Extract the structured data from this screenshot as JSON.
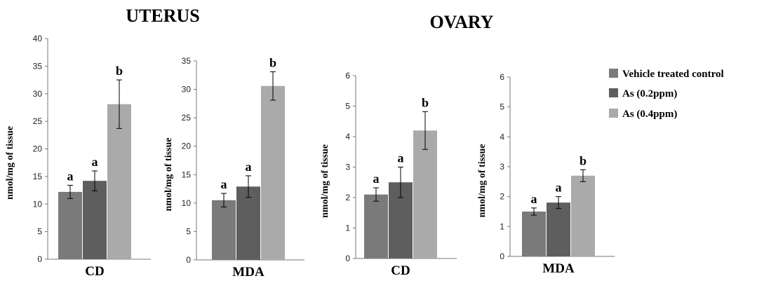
{
  "group_titles": [
    "UTERUS",
    "OVARY"
  ],
  "legend": [
    {
      "label": "Vehicle treated control",
      "color": "#7a7a7a"
    },
    {
      "label": "As (0.2ppm)",
      "color": "#5e5e5e"
    },
    {
      "label": "As (0.4ppm)",
      "color": "#aaaaaa"
    }
  ],
  "chart_data": [
    {
      "type": "bar",
      "group": "UTERUS",
      "categories": [
        "CD"
      ],
      "ylabel": "nmol/mg of tissue",
      "ylim": [
        0,
        40
      ],
      "yticks": [
        0,
        5,
        10,
        15,
        20,
        25,
        30,
        35,
        40
      ],
      "series": [
        {
          "name": "Vehicle treated control",
          "values": [
            12.2
          ],
          "error": [
            1.2
          ],
          "sig": [
            "a"
          ]
        },
        {
          "name": "As (0.2ppm)",
          "values": [
            14.2
          ],
          "error": [
            1.8
          ],
          "sig": [
            "a"
          ]
        },
        {
          "name": "As (0.4ppm)",
          "values": [
            28.1
          ],
          "error": [
            4.4
          ],
          "sig": [
            "b"
          ]
        }
      ]
    },
    {
      "type": "bar",
      "group": "UTERUS",
      "categories": [
        "MDA"
      ],
      "ylabel": "nmol/mg of tissue",
      "ylim": [
        0,
        35
      ],
      "yticks": [
        0,
        5,
        10,
        15,
        20,
        25,
        30,
        35
      ],
      "series": [
        {
          "name": "Vehicle treated control",
          "values": [
            10.5
          ],
          "error": [
            1.2
          ],
          "sig": [
            "a"
          ]
        },
        {
          "name": "As (0.2ppm)",
          "values": [
            12.9
          ],
          "error": [
            1.9
          ],
          "sig": [
            "a"
          ]
        },
        {
          "name": "As (0.4ppm)",
          "values": [
            30.6
          ],
          "error": [
            2.5
          ],
          "sig": [
            "b"
          ]
        }
      ]
    },
    {
      "type": "bar",
      "group": "OVARY",
      "categories": [
        "CD"
      ],
      "ylabel": "nmol/mg of tissue",
      "ylim": [
        0,
        6
      ],
      "yticks": [
        0,
        1,
        2,
        3,
        4,
        5,
        6
      ],
      "series": [
        {
          "name": "Vehicle treated control",
          "values": [
            2.1
          ],
          "error": [
            0.22
          ],
          "sig": [
            "a"
          ]
        },
        {
          "name": "As (0.2ppm)",
          "values": [
            2.5
          ],
          "error": [
            0.5
          ],
          "sig": [
            "a"
          ]
        },
        {
          "name": "As (0.4ppm)",
          "values": [
            4.2
          ],
          "error": [
            0.62
          ],
          "sig": [
            "b"
          ]
        }
      ]
    },
    {
      "type": "bar",
      "group": "OVARY",
      "categories": [
        "MDA"
      ],
      "ylabel": "nmol/mg of tissue",
      "ylim": [
        0,
        6
      ],
      "yticks": [
        0,
        1,
        2,
        3,
        4,
        5,
        6
      ],
      "series": [
        {
          "name": "Vehicle treated control",
          "values": [
            1.5
          ],
          "error": [
            0.12
          ],
          "sig": [
            "a"
          ]
        },
        {
          "name": "As (0.2ppm)",
          "values": [
            1.8
          ],
          "error": [
            0.2
          ],
          "sig": [
            "a"
          ]
        },
        {
          "name": "As (0.4ppm)",
          "values": [
            2.7
          ],
          "error": [
            0.2
          ],
          "sig": [
            "b"
          ]
        }
      ]
    }
  ]
}
